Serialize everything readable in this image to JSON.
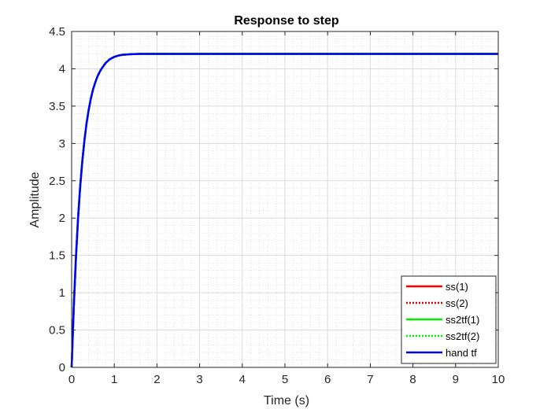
{
  "chart_data": {
    "type": "line",
    "title": "Response to step",
    "xlabel": "Time (s)",
    "ylabel": "Amplitude",
    "xlim": [
      0,
      10
    ],
    "ylim": [
      0,
      4.5
    ],
    "xticks": [
      0,
      1,
      2,
      3,
      4,
      5,
      6,
      7,
      8,
      9,
      10
    ],
    "xtick_labels": [
      "0",
      "1",
      "2",
      "3",
      "4",
      "5",
      "6",
      "7",
      "8",
      "9",
      "10"
    ],
    "yticks": [
      0,
      0.5,
      1,
      1.5,
      2,
      2.5,
      3,
      3.5,
      4,
      4.5
    ],
    "ytick_labels": [
      "0",
      "0.5",
      "1",
      "1.5",
      "2",
      "2.5",
      "3",
      "3.5",
      "4",
      "4.5"
    ],
    "grid": true,
    "minor_grid": true,
    "legend_position": "bottom-right",
    "x": [
      0,
      0.05,
      0.1,
      0.15,
      0.2,
      0.25,
      0.3,
      0.35,
      0.4,
      0.45,
      0.5,
      0.55,
      0.6,
      0.65,
      0.7,
      0.75,
      0.8,
      0.9,
      1.0,
      1.1,
      1.2,
      1.4,
      1.6,
      1.8,
      2.0,
      2.5,
      3,
      4,
      5,
      6,
      7,
      8,
      9,
      10
    ],
    "series": [
      {
        "name": "ss(1)",
        "color": "#ff0000",
        "line_style": "solid",
        "values": [
          0,
          0.81,
          1.46,
          1.99,
          2.42,
          2.76,
          3.04,
          3.27,
          3.45,
          3.6,
          3.72,
          3.81,
          3.89,
          3.95,
          4.0,
          4.04,
          4.08,
          4.13,
          4.16,
          4.178,
          4.188,
          4.196,
          4.199,
          4.2,
          4.2,
          4.2,
          4.2,
          4.2,
          4.2,
          4.2,
          4.2,
          4.2,
          4.2,
          4.2
        ]
      },
      {
        "name": "ss(2)",
        "color": "#d40000",
        "line_style": "dotted",
        "values": [
          0,
          0.81,
          1.46,
          1.99,
          2.42,
          2.76,
          3.04,
          3.27,
          3.45,
          3.6,
          3.72,
          3.81,
          3.89,
          3.95,
          4.0,
          4.04,
          4.08,
          4.13,
          4.16,
          4.178,
          4.188,
          4.196,
          4.199,
          4.2,
          4.2,
          4.2,
          4.2,
          4.2,
          4.2,
          4.2,
          4.2,
          4.2,
          4.2,
          4.2
        ]
      },
      {
        "name": "ss2tf(1)",
        "color": "#00ee00",
        "line_style": "solid",
        "values": [
          0,
          0.81,
          1.46,
          1.99,
          2.42,
          2.76,
          3.04,
          3.27,
          3.45,
          3.6,
          3.72,
          3.81,
          3.89,
          3.95,
          4.0,
          4.04,
          4.08,
          4.13,
          4.16,
          4.178,
          4.188,
          4.196,
          4.199,
          4.2,
          4.2,
          4.2,
          4.2,
          4.2,
          4.2,
          4.2,
          4.2,
          4.2,
          4.2,
          4.2
        ]
      },
      {
        "name": "ss2tf(2)",
        "color": "#00ee00",
        "line_style": "dotted",
        "values": [
          0,
          0.81,
          1.46,
          1.99,
          2.42,
          2.76,
          3.04,
          3.27,
          3.45,
          3.6,
          3.72,
          3.81,
          3.89,
          3.95,
          4.0,
          4.04,
          4.08,
          4.13,
          4.16,
          4.178,
          4.188,
          4.196,
          4.199,
          4.2,
          4.2,
          4.2,
          4.2,
          4.2,
          4.2,
          4.2,
          4.2,
          4.2,
          4.2,
          4.2
        ]
      },
      {
        "name": "hand tf",
        "color": "#0000ff",
        "line_style": "solid",
        "values": [
          0,
          0.81,
          1.46,
          1.99,
          2.42,
          2.76,
          3.04,
          3.27,
          3.45,
          3.6,
          3.72,
          3.81,
          3.89,
          3.95,
          4.0,
          4.04,
          4.08,
          4.13,
          4.16,
          4.178,
          4.188,
          4.196,
          4.199,
          4.2,
          4.2,
          4.2,
          4.2,
          4.2,
          4.2,
          4.2,
          4.2,
          4.2,
          4.2,
          4.2
        ]
      }
    ]
  }
}
